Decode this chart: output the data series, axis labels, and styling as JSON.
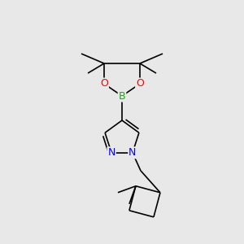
{
  "background_color": "#e8e8e8",
  "atom_colors": {
    "C": "#000000",
    "N": "#0000ff",
    "O": "#ff0000",
    "B": "#00bb00"
  },
  "bond_color": "#000000",
  "bond_width": 1.2,
  "font_size_atom": 9,
  "figsize": [
    3.0,
    3.0
  ],
  "dpi": 100
}
